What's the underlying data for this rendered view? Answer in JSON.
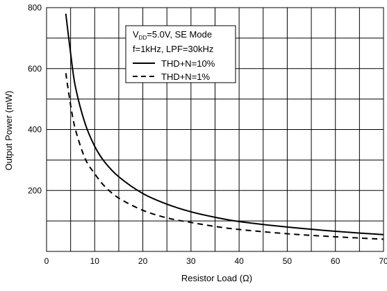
{
  "chart_data": {
    "type": "line",
    "xlabel": "Resistor Load (Ω)",
    "ylabel": "Output Power (mW)",
    "xlim": [
      0,
      70
    ],
    "ylim": [
      0,
      800
    ],
    "x_ticks": [
      0,
      10,
      20,
      30,
      40,
      50,
      60,
      70
    ],
    "y_ticks": [
      200,
      400,
      600,
      800
    ],
    "x_minor_step": 5,
    "y_minor_step": 100,
    "grid": true,
    "legend_position": "top-center",
    "legend": {
      "line1_prefix": "V",
      "line1_sub": "DD",
      "line1_suffix": "=5.0V, SE Mode",
      "line2": "f=1kHz, LPF=30kHz"
    },
    "series": [
      {
        "name": "THD+N=10%",
        "style": "solid",
        "x": [
          4,
          5,
          6,
          8,
          10,
          12,
          15,
          20,
          25,
          30,
          35,
          40,
          50,
          60,
          70
        ],
        "y": [
          780,
          650,
          540,
          420,
          345,
          295,
          245,
          190,
          155,
          130,
          112,
          98,
          80,
          66,
          55
        ]
      },
      {
        "name": "THD+N=1%",
        "style": "dashed",
        "x": [
          4,
          5,
          6,
          8,
          10,
          12,
          15,
          20,
          25,
          30,
          35,
          40,
          50,
          60,
          70
        ],
        "y": [
          585,
          480,
          400,
          305,
          255,
          215,
          175,
          135,
          110,
          95,
          82,
          72,
          58,
          48,
          40
        ]
      }
    ]
  }
}
